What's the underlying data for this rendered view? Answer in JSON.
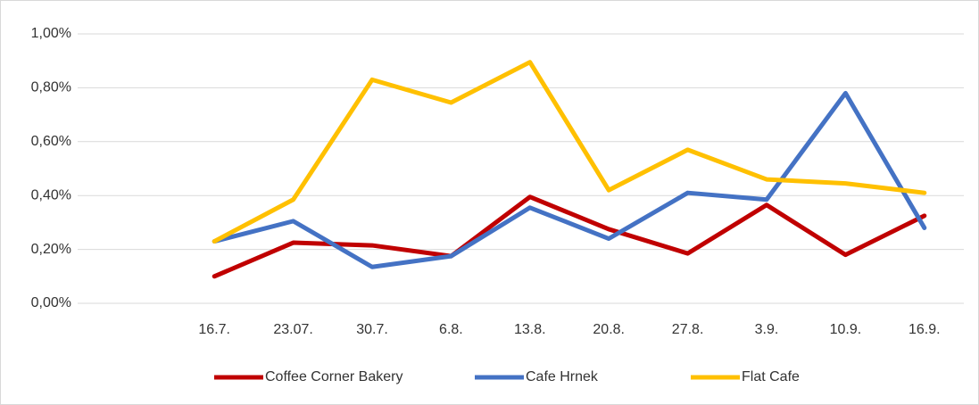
{
  "chart_data": {
    "type": "line",
    "categories": [
      "16.7.",
      "23.07.",
      "30.7.",
      "6.8.",
      "13.8.",
      "20.8.",
      "27.8.",
      "3.9.",
      "10.9.",
      "16.9."
    ],
    "series": [
      {
        "name": "Coffee Corner Bakery",
        "color": "#c00000",
        "values": [
          0.1,
          0.225,
          0.215,
          0.175,
          0.395,
          0.275,
          0.185,
          0.365,
          0.18,
          0.325
        ]
      },
      {
        "name": "Cafe Hrnek",
        "color": "#4472c4",
        "values": [
          0.23,
          0.305,
          0.135,
          0.175,
          0.355,
          0.24,
          0.41,
          0.385,
          0.78,
          0.28
        ]
      },
      {
        "name": "Flat Cafe",
        "color": "#ffc000",
        "values": [
          0.23,
          0.385,
          0.83,
          0.745,
          0.895,
          0.42,
          0.57,
          0.46,
          0.445,
          0.41
        ]
      }
    ],
    "ylim": [
      0,
      1
    ],
    "yticks": [
      {
        "value": 0,
        "label": "0,00%"
      },
      {
        "value": 0.2,
        "label": "0,20%"
      },
      {
        "value": 0.4,
        "label": "0,40%"
      },
      {
        "value": 0.6,
        "label": "0,60%"
      },
      {
        "value": 0.8,
        "label": "0,80%"
      },
      {
        "value": 1,
        "label": "1,00%"
      }
    ],
    "grid": true,
    "legend": "bottom"
  }
}
